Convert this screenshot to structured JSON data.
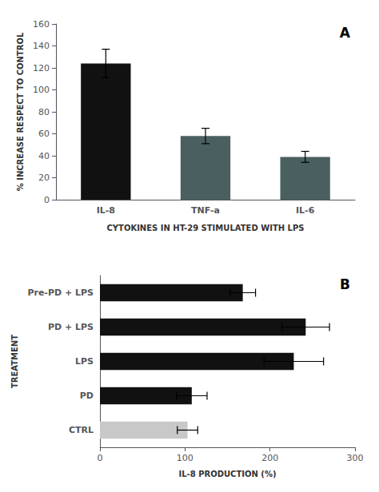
{
  "chart_data": [
    {
      "type": "bar",
      "categories": [
        "IL-8",
        "TNF-a",
        "IL-6"
      ],
      "values": [
        124,
        58,
        39
      ],
      "errors": [
        13,
        7,
        5
      ],
      "colors": [
        "#111111",
        "#4a6060",
        "#4a6060"
      ],
      "ylabel": "% INCREASE RESPECT TO CONTROL",
      "xlabel": "CYTOKINES IN HT-29 STIMULATED WITH LPS",
      "ylim": [
        0,
        160
      ],
      "yticks": [
        0,
        20,
        40,
        60,
        80,
        100,
        120,
        140,
        160
      ],
      "grid": false,
      "annotation": "A"
    },
    {
      "type": "bar",
      "orientation": "horizontal",
      "categories": [
        "CTRL",
        "PD",
        "LPS",
        "PD + LPS",
        "Pre-PD + LPS"
      ],
      "values": [
        103,
        108,
        228,
        242,
        168
      ],
      "errors": [
        12,
        18,
        35,
        28,
        15
      ],
      "colors": [
        "#c8c8c8",
        "#111111",
        "#111111",
        "#111111",
        "#111111"
      ],
      "xlabel": "IL-8 PRODUCTION (%)",
      "ylabel": "TREATMENT",
      "xlim": [
        0,
        300
      ],
      "xticks": [
        0,
        100,
        200,
        300
      ],
      "grid": false,
      "annotation": "B"
    }
  ]
}
